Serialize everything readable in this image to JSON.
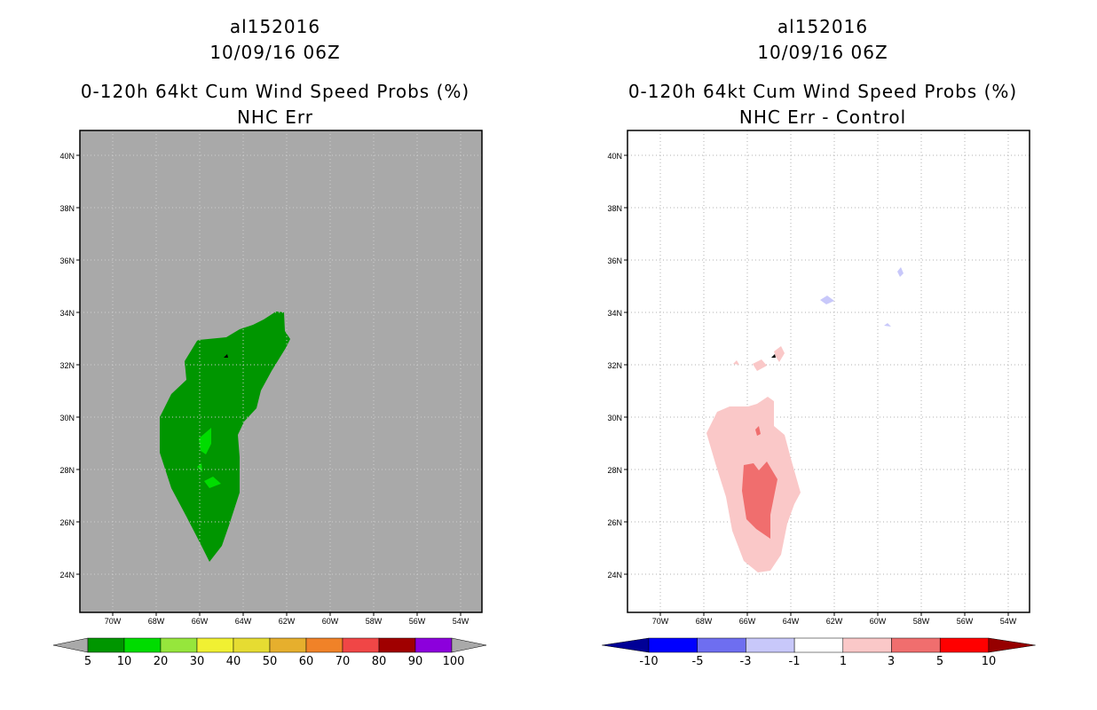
{
  "left": {
    "storm_id": "al152016",
    "datetime": "10/09/16 06Z",
    "product": "0-120h 64kt Cum Wind Speed Probs (%)",
    "subtitle": "NHC Err",
    "lat_labels": [
      "40N",
      "38N",
      "36N",
      "34N",
      "32N",
      "30N",
      "28N",
      "26N",
      "24N"
    ],
    "lon_labels": [
      "70W",
      "68W",
      "66W",
      "64W",
      "62W",
      "60W",
      "58W",
      "56W",
      "54W"
    ],
    "colorbar": {
      "labels": [
        "5",
        "10",
        "20",
        "30",
        "40",
        "50",
        "60",
        "70",
        "80",
        "90",
        "100"
      ],
      "colors": [
        "#009600",
        "#00dc00",
        "#96e63c",
        "#f0f032",
        "#e6dc32",
        "#e6af2d",
        "#f08228",
        "#f04646",
        "#a00000",
        "#8c00dc",
        "#a9a9a9"
      ]
    }
  },
  "right": {
    "storm_id": "al152016",
    "datetime": "10/09/16 06Z",
    "product": "0-120h 64kt Cum Wind Speed Probs (%)",
    "subtitle": "NHC Err - Control",
    "lat_labels": [
      "40N",
      "38N",
      "36N",
      "34N",
      "32N",
      "30N",
      "28N",
      "26N",
      "24N"
    ],
    "lon_labels": [
      "70W",
      "68W",
      "66W",
      "64W",
      "62W",
      "60W",
      "58W",
      "56W",
      "54W"
    ],
    "colorbar": {
      "labels": [
        "-10",
        "-5",
        "-3",
        "-1",
        "1",
        "3",
        "5",
        "10"
      ],
      "colors": [
        "#000096",
        "#0000ff",
        "#6e6ef0",
        "#c8c8fa",
        "#ffffff",
        "#fac8c8",
        "#f06e6e",
        "#ff0000",
        "#960000"
      ]
    }
  },
  "map_extent": {
    "lon_min": -71.5,
    "lon_max": -52.8,
    "lat_min": 22.5,
    "lat_max": 41.0
  }
}
